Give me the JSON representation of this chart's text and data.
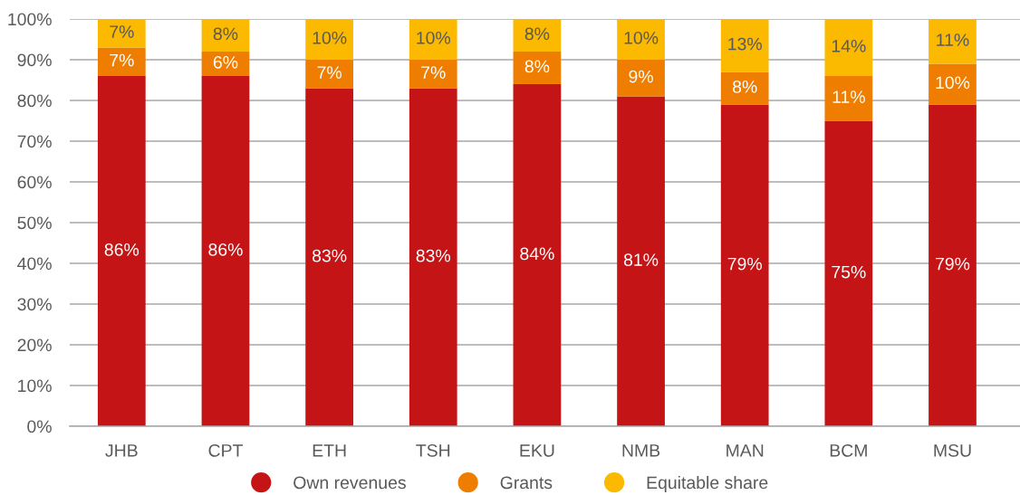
{
  "chart_data": {
    "type": "bar",
    "stacked": true,
    "categories": [
      "JHB",
      "CPT",
      "ETH",
      "TSH",
      "EKU",
      "NMB",
      "MAN",
      "BCM",
      "MSU"
    ],
    "series": [
      {
        "name": "Own revenues",
        "color": "#c41416",
        "values": [
          86,
          86,
          83,
          83,
          84,
          81,
          79,
          75,
          79
        ],
        "value_labels": [
          "86%",
          "86%",
          "83%",
          "83%",
          "84%",
          "81%",
          "79%",
          "75%",
          "79%"
        ]
      },
      {
        "name": "Grants",
        "color": "#ef7d00",
        "values": [
          7,
          6,
          7,
          7,
          8,
          9,
          8,
          11,
          10
        ],
        "value_labels": [
          "7%",
          "6%",
          "7%",
          "7%",
          "8%",
          "9%",
          "8%",
          "11%",
          "10%"
        ]
      },
      {
        "name": "Equitable share",
        "color": "#fbb900",
        "values": [
          7,
          8,
          10,
          10,
          8,
          10,
          13,
          14,
          11
        ],
        "value_labels": [
          "7%",
          "8%",
          "10%",
          "10%",
          "8%",
          "10%",
          "13%",
          "14%",
          "11%"
        ]
      }
    ],
    "ylim": [
      0,
      100
    ],
    "yticks": [
      {
        "value": 0,
        "label": "0%"
      },
      {
        "value": 10,
        "label": "10%"
      },
      {
        "value": 20,
        "label": "20%"
      },
      {
        "value": 30,
        "label": "30%"
      },
      {
        "value": 40,
        "label": "40%"
      },
      {
        "value": 50,
        "label": "50%"
      },
      {
        "value": 60,
        "label": "60%"
      },
      {
        "value": 70,
        "label": "70%"
      },
      {
        "value": 80,
        "label": "80%"
      },
      {
        "value": 90,
        "label": "90%"
      },
      {
        "value": 100,
        "label": "100%"
      }
    ],
    "grid": "y",
    "legend": "bottom",
    "marker": "circle"
  }
}
